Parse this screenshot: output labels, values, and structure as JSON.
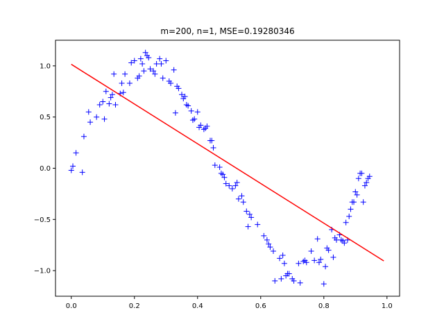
{
  "chart_data": {
    "type": "scatter",
    "title": "m=200, n=1, MSE=0.19280346",
    "xlabel": "",
    "ylabel": "",
    "xlim": [
      -0.05,
      1.04
    ],
    "ylim": [
      -1.25,
      1.25
    ],
    "x_ticks": [
      0.0,
      0.2,
      0.4,
      0.6,
      0.8,
      1.0
    ],
    "x_tick_labels": [
      "0.0",
      "0.2",
      "0.4",
      "0.6",
      "0.8",
      "1.0"
    ],
    "y_ticks": [
      -1.0,
      -0.5,
      0.0,
      0.5,
      1.0
    ],
    "y_tick_labels": [
      "−1.0",
      "−0.5",
      "0.0",
      "0.5",
      "1.0"
    ],
    "grid": false,
    "series": [
      {
        "kind": "scatter",
        "marker": "+",
        "color": "#0000ff",
        "points": [
          [
            0.0,
            -0.02
          ],
          [
            0.005,
            0.02
          ],
          [
            0.015,
            0.15
          ],
          [
            0.035,
            -0.04
          ],
          [
            0.04,
            0.31
          ],
          [
            0.055,
            0.55
          ],
          [
            0.06,
            0.45
          ],
          [
            0.08,
            0.5
          ],
          [
            0.09,
            0.62
          ],
          [
            0.1,
            0.65
          ],
          [
            0.105,
            0.48
          ],
          [
            0.11,
            0.75
          ],
          [
            0.12,
            0.63
          ],
          [
            0.125,
            0.69
          ],
          [
            0.13,
            0.72
          ],
          [
            0.135,
            0.92
          ],
          [
            0.14,
            0.62
          ],
          [
            0.155,
            0.73
          ],
          [
            0.16,
            0.83
          ],
          [
            0.165,
            0.74
          ],
          [
            0.17,
            0.92
          ],
          [
            0.185,
            0.83
          ],
          [
            0.19,
            1.03
          ],
          [
            0.2,
            1.05
          ],
          [
            0.21,
            0.88
          ],
          [
            0.215,
            0.9
          ],
          [
            0.22,
            1.07
          ],
          [
            0.225,
            1.02
          ],
          [
            0.23,
            0.95
          ],
          [
            0.235,
            1.13
          ],
          [
            0.24,
            1.1
          ],
          [
            0.245,
            1.08
          ],
          [
            0.25,
            0.97
          ],
          [
            0.26,
            0.95
          ],
          [
            0.265,
            0.92
          ],
          [
            0.27,
            1.02
          ],
          [
            0.28,
            1.07
          ],
          [
            0.285,
            1.02
          ],
          [
            0.29,
            0.88
          ],
          [
            0.3,
            1.05
          ],
          [
            0.31,
            0.85
          ],
          [
            0.315,
            0.83
          ],
          [
            0.325,
            0.96
          ],
          [
            0.33,
            0.54
          ],
          [
            0.335,
            0.8
          ],
          [
            0.34,
            0.78
          ],
          [
            0.35,
            0.72
          ],
          [
            0.355,
            0.68
          ],
          [
            0.36,
            0.7
          ],
          [
            0.365,
            0.62
          ],
          [
            0.37,
            0.61
          ],
          [
            0.38,
            0.56
          ],
          [
            0.385,
            0.47
          ],
          [
            0.39,
            0.48
          ],
          [
            0.4,
            0.55
          ],
          [
            0.405,
            0.4
          ],
          [
            0.41,
            0.42
          ],
          [
            0.42,
            0.38
          ],
          [
            0.425,
            0.39
          ],
          [
            0.43,
            0.41
          ],
          [
            0.44,
            0.27
          ],
          [
            0.445,
            0.27
          ],
          [
            0.45,
            0.2
          ],
          [
            0.455,
            0.03
          ],
          [
            0.47,
            0.01
          ],
          [
            0.475,
            -0.05
          ],
          [
            0.48,
            -0.06
          ],
          [
            0.485,
            -0.09
          ],
          [
            0.49,
            -0.15
          ],
          [
            0.5,
            -0.17
          ],
          [
            0.51,
            -0.2
          ],
          [
            0.52,
            -0.17
          ],
          [
            0.525,
            -0.14
          ],
          [
            0.53,
            -0.3
          ],
          [
            0.54,
            -0.27
          ],
          [
            0.545,
            -0.33
          ],
          [
            0.555,
            -0.42
          ],
          [
            0.56,
            -0.57
          ],
          [
            0.565,
            -0.45
          ],
          [
            0.57,
            -0.48
          ],
          [
            0.59,
            -0.55
          ],
          [
            0.61,
            -0.66
          ],
          [
            0.62,
            -0.7
          ],
          [
            0.625,
            -0.74
          ],
          [
            0.63,
            -0.77
          ],
          [
            0.64,
            -0.81
          ],
          [
            0.645,
            -1.1
          ],
          [
            0.66,
            -0.88
          ],
          [
            0.665,
            -1.08
          ],
          [
            0.67,
            -0.85
          ],
          [
            0.675,
            -0.93
          ],
          [
            0.68,
            -1.05
          ],
          [
            0.685,
            -1.03
          ],
          [
            0.69,
            -1.03
          ],
          [
            0.7,
            -1.08
          ],
          [
            0.705,
            -1.1
          ],
          [
            0.72,
            -0.93
          ],
          [
            0.725,
            -1.12
          ],
          [
            0.735,
            -0.91
          ],
          [
            0.74,
            -0.9
          ],
          [
            0.745,
            -0.92
          ],
          [
            0.76,
            -0.81
          ],
          [
            0.77,
            -0.9
          ],
          [
            0.78,
            -0.69
          ],
          [
            0.785,
            -0.92
          ],
          [
            0.79,
            -0.89
          ],
          [
            0.8,
            -1.13
          ],
          [
            0.805,
            -0.96
          ],
          [
            0.81,
            -0.78
          ],
          [
            0.815,
            -0.8
          ],
          [
            0.825,
            -0.6
          ],
          [
            0.83,
            -0.87
          ],
          [
            0.835,
            -0.68
          ],
          [
            0.84,
            -0.7
          ],
          [
            0.85,
            -0.65
          ],
          [
            0.855,
            -0.7
          ],
          [
            0.86,
            -0.71
          ],
          [
            0.865,
            -0.73
          ],
          [
            0.87,
            -0.53
          ],
          [
            0.875,
            -0.7
          ],
          [
            0.88,
            -0.47
          ],
          [
            0.885,
            -0.4
          ],
          [
            0.89,
            -0.33
          ],
          [
            0.895,
            -0.33
          ],
          [
            0.9,
            -0.23
          ],
          [
            0.905,
            -0.26
          ],
          [
            0.91,
            -0.1
          ],
          [
            0.915,
            -0.05
          ],
          [
            0.92,
            -0.05
          ],
          [
            0.925,
            -0.33
          ],
          [
            0.93,
            -0.17
          ],
          [
            0.935,
            -0.14
          ],
          [
            0.94,
            -0.1
          ],
          [
            0.945,
            -0.08
          ]
        ]
      },
      {
        "kind": "line",
        "color": "#ff0000",
        "points": [
          [
            0.0,
            1.015
          ],
          [
            0.99,
            -0.905
          ]
        ]
      }
    ]
  }
}
